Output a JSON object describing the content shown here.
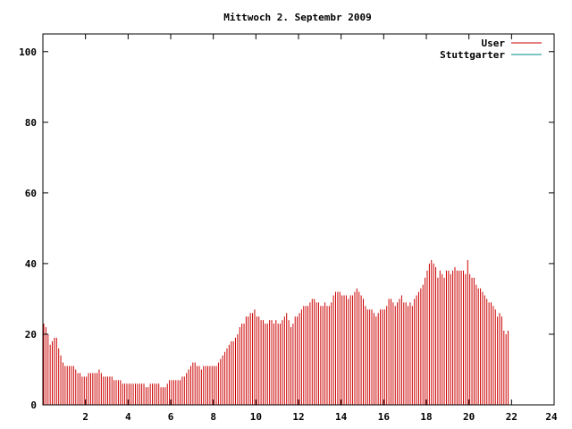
{
  "chart_data": {
    "type": "bar",
    "title": "Mittwoch 2. Septembr 2009",
    "xlabel": "",
    "ylabel": "",
    "xlim": [
      0,
      24
    ],
    "ylim": [
      0,
      105
    ],
    "x_ticks": [
      2,
      4,
      6,
      8,
      10,
      12,
      14,
      16,
      18,
      20,
      22,
      24
    ],
    "y_ticks": [
      0,
      20,
      40,
      60,
      80,
      100
    ],
    "grid": false,
    "legend_position": "top-right",
    "series": [
      {
        "name": "User",
        "color": "#cc0000"
      },
      {
        "name": "Stuttgarter",
        "color": "#008b8b"
      }
    ],
    "x_step_hours": 0.1,
    "values": [
      23,
      22,
      20,
      17,
      18,
      19,
      19,
      16,
      14,
      12,
      11,
      11,
      11,
      11,
      11,
      10,
      9,
      9,
      8,
      8,
      8,
      9,
      9,
      9,
      9,
      9,
      10,
      9,
      8,
      8,
      8,
      8,
      8,
      7,
      7,
      7,
      7,
      6,
      6,
      6,
      6,
      6,
      6,
      6,
      6,
      6,
      6,
      6,
      5,
      5,
      6,
      6,
      6,
      6,
      6,
      5,
      5,
      5,
      6,
      7,
      7,
      7,
      7,
      7,
      7,
      8,
      8,
      9,
      10,
      11,
      12,
      12,
      11,
      11,
      10,
      11,
      11,
      11,
      11,
      11,
      11,
      11,
      12,
      13,
      14,
      15,
      16,
      17,
      18,
      18,
      19,
      20,
      22,
      23,
      23,
      25,
      25,
      26,
      26,
      27,
      25,
      25,
      24,
      24,
      23,
      23,
      24,
      24,
      23,
      24,
      23,
      23,
      24,
      25,
      26,
      24,
      22,
      23,
      25,
      25,
      26,
      27,
      28,
      28,
      28,
      29,
      30,
      30,
      29,
      29,
      28,
      28,
      29,
      28,
      28,
      29,
      31,
      32,
      32,
      32,
      31,
      31,
      31,
      30,
      31,
      31,
      32,
      33,
      32,
      31,
      30,
      28,
      27,
      27,
      27,
      26,
      25,
      26,
      27,
      27,
      27,
      28,
      30,
      30,
      29,
      28,
      29,
      30,
      31,
      29,
      29,
      28,
      29,
      28,
      30,
      31,
      32,
      33,
      34,
      36,
      38,
      40,
      41,
      40,
      39,
      36,
      38,
      37,
      36,
      38,
      38,
      37,
      38,
      39,
      38,
      38,
      38,
      38,
      37,
      41,
      37,
      36,
      36,
      34,
      33,
      33,
      32,
      31,
      30,
      29,
      29,
      28,
      27,
      25,
      26,
      25,
      21,
      20,
      21
    ]
  }
}
